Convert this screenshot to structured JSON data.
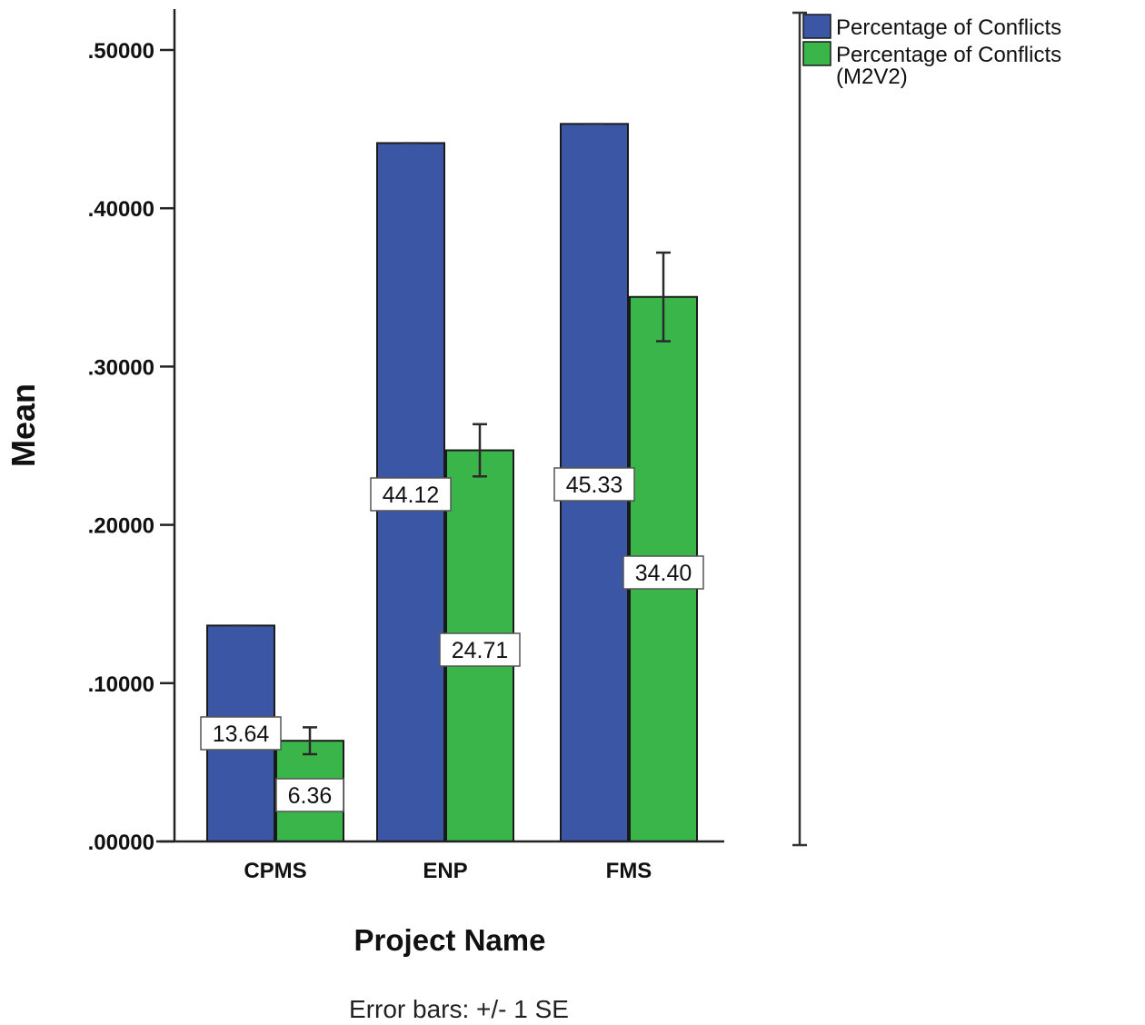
{
  "chart_data": {
    "type": "bar",
    "categories": [
      "CPMS",
      "ENP",
      "FMS"
    ],
    "series": [
      {
        "name": "Percentage of Conflicts",
        "color": "#3c56a6",
        "values": [
          0.1364,
          0.4412,
          0.4533
        ],
        "data_labels": [
          "13.64",
          "44.12",
          "45.33"
        ],
        "error": [
          0.0,
          0.0,
          0.0
        ]
      },
      {
        "name": "Percentage of Conflicts (M2V2)",
        "color": "#3ab54a",
        "values": [
          0.0636,
          0.2471,
          0.344
        ],
        "data_labels": [
          "6.36",
          "24.71",
          "34.40"
        ],
        "error": [
          0.0085,
          0.0165,
          0.028
        ]
      }
    ],
    "xlabel": "Project Name",
    "ylabel": "Mean",
    "ylim": [
      0,
      0.5
    ],
    "yticks": [
      0.0,
      0.1,
      0.2,
      0.3,
      0.4,
      0.5
    ],
    "ytick_labels": [
      ".00000",
      ".10000",
      ".20000",
      ".30000",
      ".40000",
      ".50000"
    ],
    "note": "Error bars: +/- 1 SE",
    "legend_position": "top-right",
    "legend_labels": [
      [
        "Percentage of Conflicts"
      ],
      [
        "Percentage of Conflicts",
        "(M2V2)"
      ]
    ],
    "grid": false
  }
}
